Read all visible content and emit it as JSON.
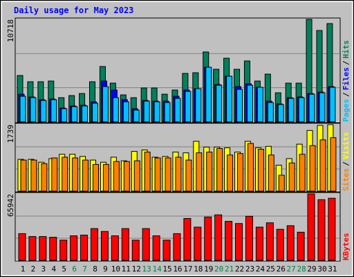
{
  "legend_separator": "/",
  "chart_data": [
    {
      "type": "bar",
      "title": "Daily usage for May 2023",
      "ylim": [
        0,
        10718
      ],
      "yticks": [
        10718
      ],
      "grid": true,
      "series": [
        {
          "name": "Pages",
          "color": "#00c0ff",
          "values": [
            2679,
            2534,
            2244,
            2317,
            1376,
            1593,
            1665,
            1955,
            3692,
            2534,
            2100,
            1231,
            2172,
            2100,
            2027,
            2462,
            3186,
            3475,
            5720,
            3837,
            4778,
            3403,
            3837,
            3620,
            2027,
            1810,
            2462,
            2534,
            2896,
            3041,
            3620
          ]
        },
        {
          "name": "Files",
          "color": "#0000ff",
          "values": [
            2896,
            2606,
            2317,
            2389,
            1448,
            1665,
            1738,
            2100,
            4272,
            3330,
            2317,
            1376,
            2244,
            2172,
            2172,
            2679,
            3330,
            3475,
            5720,
            3910,
            4778,
            3692,
            3982,
            3620,
            2172,
            1882,
            2534,
            2606,
            2968,
            3113,
            3692
          ]
        },
        {
          "name": "Hits",
          "color": "#00805c",
          "values": [
            4851,
            4199,
            4199,
            4272,
            2534,
            2751,
            2968,
            4199,
            5792,
            4054,
            2824,
            2534,
            3548,
            3548,
            2896,
            3330,
            5068,
            5140,
            7312,
            5502,
            6661,
            5502,
            6371,
            4272,
            4996,
            3041,
            4054,
            4054,
            10718,
            9557,
            10281
          ]
        }
      ]
    },
    {
      "type": "bar",
      "ylim": [
        0,
        1739
      ],
      "yticks": [
        1739
      ],
      "grid": true,
      "series": [
        {
          "name": "Sites",
          "color": "#ff8000",
          "values": [
            813,
            813,
            718,
            869,
            888,
            869,
            813,
            699,
            699,
            775,
            775,
            794,
            1021,
            869,
            869,
            888,
            813,
            1002,
            1021,
            1115,
            945,
            983,
            1247,
            1096,
            945,
            416,
            737,
            964,
            1191,
            1342,
            1399
          ]
        },
        {
          "name": "Visits",
          "color": "#ffff00",
          "values": [
            832,
            832,
            756,
            851,
            964,
            964,
            907,
            813,
            756,
            888,
            794,
            1040,
            1077,
            888,
            907,
            1021,
            1002,
            1304,
            1153,
            1153,
            1134,
            1021,
            1304,
            1134,
            1172,
            680,
            851,
            1229,
            1588,
            1720,
            1739
          ]
        }
      ]
    },
    {
      "type": "bar",
      "ylim": [
        0,
        65942
      ],
      "yticks": [
        65942
      ],
      "grid": true,
      "categories": [
        "1",
        "2",
        "3",
        "4",
        "5",
        "6",
        "7",
        "8",
        "9",
        "10",
        "11",
        "12",
        "13",
        "14",
        "15",
        "16",
        "17",
        "18",
        "19",
        "20",
        "21",
        "22",
        "23",
        "24",
        "25",
        "26",
        "27",
        "28",
        "29",
        "30",
        "31"
      ],
      "tick_colors": [
        "#000000",
        "#000000",
        "#000000",
        "#000000",
        "#000000",
        "#008040",
        "#008040",
        "#000000",
        "#000000",
        "#000000",
        "#000000",
        "#000000",
        "#008040",
        "#008040",
        "#000000",
        "#000000",
        "#000000",
        "#000000",
        "#000000",
        "#008040",
        "#008040",
        "#000000",
        "#000000",
        "#000000",
        "#000000",
        "#000000",
        "#008040",
        "#008040",
        "#000000",
        "#000000",
        "#000000"
      ],
      "series": [
        {
          "name": "KBytes",
          "color": "#ff0000",
          "values": [
            26529,
            23661,
            23661,
            22944,
            20076,
            24378,
            25095,
            31548,
            28680,
            24378,
            31548,
            20076,
            31548,
            24378,
            20076,
            26529,
            41586,
            32982,
            43020,
            45171,
            38718,
            36567,
            43737,
            32982,
            37284,
            30831,
            34416,
            27963,
            65942,
            60228,
            61662
          ]
        }
      ]
    }
  ]
}
